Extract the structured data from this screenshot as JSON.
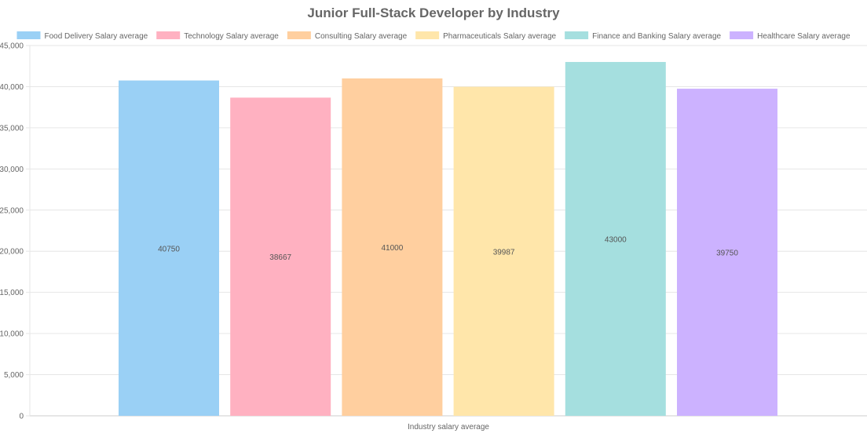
{
  "chart_data": {
    "type": "bar",
    "title": "Junior Full-Stack Developer by Industry",
    "xlabel": "",
    "ylabel": "",
    "categories": [
      "Industry salary average"
    ],
    "ylim": [
      0,
      45000
    ],
    "yticks": [
      0,
      5000,
      10000,
      15000,
      20000,
      25000,
      30000,
      35000,
      40000,
      45000
    ],
    "ytick_labels": [
      "0",
      "5,000",
      "10,000",
      "15,000",
      "20,000",
      "25,000",
      "30,000",
      "35,000",
      "40,000",
      "45,000"
    ],
    "grid": true,
    "legend_position": "top",
    "series": [
      {
        "name": "Food Delivery Salary average",
        "values": [
          40750
        ],
        "value_labels": [
          "40750"
        ],
        "color": "#9ad0f5",
        "border": "#36a2eb"
      },
      {
        "name": "Technology Salary average",
        "values": [
          38667
        ],
        "value_labels": [
          "38667"
        ],
        "color": "#ffb1c1",
        "border": "#ff6384"
      },
      {
        "name": "Consulting Salary average",
        "values": [
          41000
        ],
        "value_labels": [
          "41000"
        ],
        "color": "#ffcf9f",
        "border": "#ff9f40"
      },
      {
        "name": "Pharmaceuticals Salary average",
        "values": [
          39987
        ],
        "value_labels": [
          "39987"
        ],
        "color": "#ffe6aa",
        "border": "#ffcd56"
      },
      {
        "name": "Finance and Banking Salary average",
        "values": [
          43000
        ],
        "value_labels": [
          "43000"
        ],
        "color": "#a5dfdf",
        "border": "#4bc0c0"
      },
      {
        "name": "Healthcare Salary average",
        "values": [
          39750
        ],
        "value_labels": [
          "39750"
        ],
        "color": "#ccb2ff",
        "border": "#9966ff"
      }
    ]
  },
  "colors": {
    "title": "#666666",
    "text": "#666666",
    "value_label": "#555555",
    "grid": "#e6e6e6",
    "axis": "#cccccc"
  }
}
